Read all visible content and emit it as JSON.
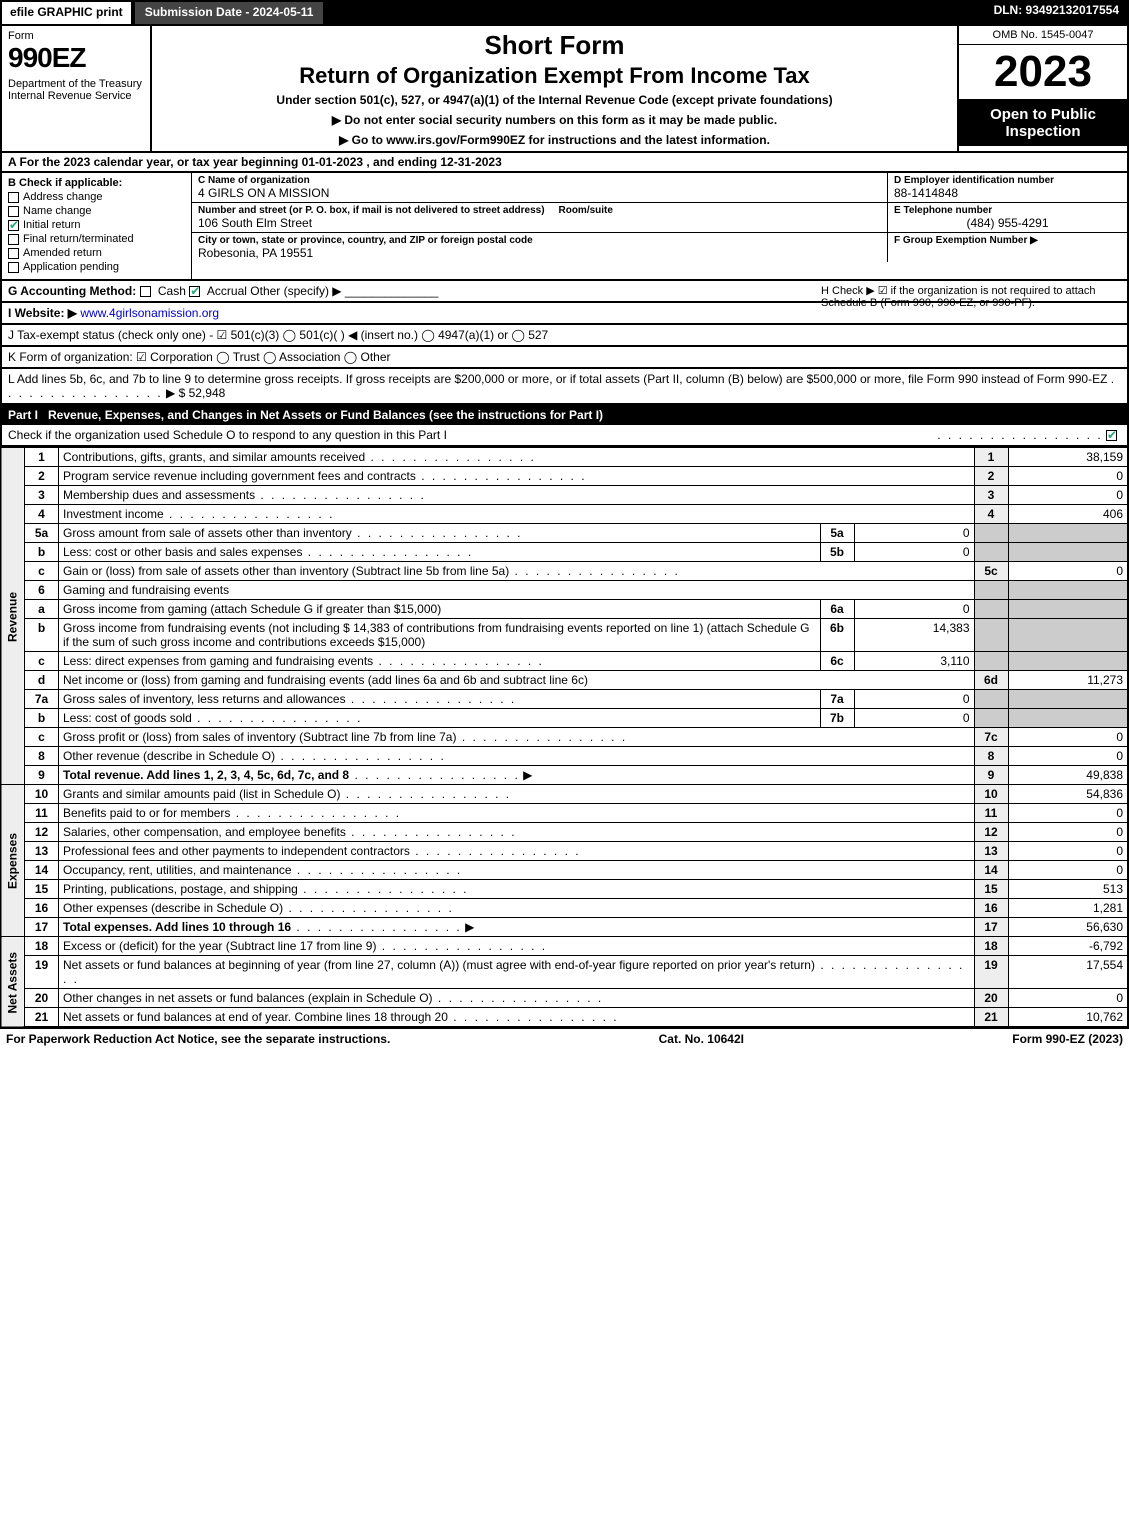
{
  "topbar": {
    "efile": "efile GRAPHIC print",
    "subdate_label": "Submission Date - 2024-05-11",
    "dln": "DLN: 93492132017554"
  },
  "header": {
    "form_word": "Form",
    "form_number": "990EZ",
    "dept": "Department of the Treasury\nInternal Revenue Service",
    "short_form": "Short Form",
    "title": "Return of Organization Exempt From Income Tax",
    "under": "Under section 501(c), 527, or 4947(a)(1) of the Internal Revenue Code (except private foundations)",
    "ssn_note": "▶ Do not enter social security numbers on this form as it may be made public.",
    "goto": "▶ Go to www.irs.gov/Form990EZ for instructions and the latest information.",
    "omb": "OMB No. 1545-0047",
    "year": "2023",
    "open": "Open to Public Inspection"
  },
  "A": "A  For the 2023 calendar year, or tax year beginning 01-01-2023 , and ending 12-31-2023",
  "B": {
    "label": "B  Check if applicable:",
    "items": [
      {
        "label": "Address change",
        "checked": false
      },
      {
        "label": "Name change",
        "checked": false
      },
      {
        "label": "Initial return",
        "checked": true
      },
      {
        "label": "Final return/terminated",
        "checked": false
      },
      {
        "label": "Amended return",
        "checked": false
      },
      {
        "label": "Application pending",
        "checked": false
      }
    ]
  },
  "C": {
    "name_label": "C Name of organization",
    "name": "4 GIRLS ON A MISSION",
    "street_label": "Number and street (or P. O. box, if mail is not delivered to street address)",
    "room_label": "Room/suite",
    "street": "106 South Elm Street",
    "city_label": "City or town, state or province, country, and ZIP or foreign postal code",
    "city": "Robesonia, PA  19551"
  },
  "D": {
    "label": "D Employer identification number",
    "value": "88-1414848"
  },
  "E": {
    "label": "E Telephone number",
    "value": "(484) 955-4291"
  },
  "F": {
    "label": "F Group Exemption Number  ▶",
    "value": ""
  },
  "G": {
    "label": "G Accounting Method:",
    "cash": "Cash",
    "accrual": "Accrual",
    "other": "Other (specify) ▶",
    "accrual_checked": true
  },
  "H": "H  Check ▶ ☑ if the organization is not required to attach Schedule B (Form 990, 990-EZ, or 990-PF).",
  "I": {
    "label": "I Website: ▶",
    "value": "www.4girlsonamission.org"
  },
  "J": "J Tax-exempt status (check only one) - ☑ 501(c)(3)  ◯ 501(c)(  ) ◀ (insert no.)  ◯ 4947(a)(1) or  ◯ 527",
  "K": "K Form of organization:  ☑ Corporation  ◯ Trust  ◯ Association  ◯ Other",
  "L": {
    "text": "L Add lines 5b, 6c, and 7b to line 9 to determine gross receipts. If gross receipts are $200,000 or more, or if total assets (Part II, column (B) below) are $500,000 or more, file Form 990 instead of Form 990-EZ",
    "amount": "▶ $ 52,948"
  },
  "part1": {
    "tag": "Part I",
    "title": "Revenue, Expenses, and Changes in Net Assets or Fund Balances (see the instructions for Part I)",
    "check_o": "Check if the organization used Schedule O to respond to any question in this Part I",
    "check_o_checked": true
  },
  "vlabels": {
    "revenue": "Revenue",
    "expenses": "Expenses",
    "netassets": "Net Assets"
  },
  "lines": {
    "1": {
      "desc": "Contributions, gifts, grants, and similar amounts received",
      "amt": "38,159"
    },
    "2": {
      "desc": "Program service revenue including government fees and contracts",
      "amt": "0"
    },
    "3": {
      "desc": "Membership dues and assessments",
      "amt": "0"
    },
    "4": {
      "desc": "Investment income",
      "amt": "406"
    },
    "5a": {
      "desc": "Gross amount from sale of assets other than inventory",
      "sub": "5a",
      "subamt": "0"
    },
    "5b": {
      "desc": "Less: cost or other basis and sales expenses",
      "sub": "5b",
      "subamt": "0"
    },
    "5c": {
      "desc": "Gain or (loss) from sale of assets other than inventory (Subtract line 5b from line 5a)",
      "amt": "0"
    },
    "6": {
      "desc": "Gaming and fundraising events"
    },
    "6a": {
      "desc": "Gross income from gaming (attach Schedule G if greater than $15,000)",
      "sub": "6a",
      "subamt": "0"
    },
    "6b": {
      "desc": "Gross income from fundraising events (not including $  14,383  of contributions from fundraising events reported on line 1) (attach Schedule G if the sum of such gross income and contributions exceeds $15,000)",
      "sub": "6b",
      "subamt": "14,383"
    },
    "6c": {
      "desc": "Less: direct expenses from gaming and fundraising events",
      "sub": "6c",
      "subamt": "3,110"
    },
    "6d": {
      "desc": "Net income or (loss) from gaming and fundraising events (add lines 6a and 6b and subtract line 6c)",
      "amt": "11,273"
    },
    "7a": {
      "desc": "Gross sales of inventory, less returns and allowances",
      "sub": "7a",
      "subamt": "0"
    },
    "7b": {
      "desc": "Less: cost of goods sold",
      "sub": "7b",
      "subamt": "0"
    },
    "7c": {
      "desc": "Gross profit or (loss) from sales of inventory (Subtract line 7b from line 7a)",
      "amt": "0"
    },
    "8": {
      "desc": "Other revenue (describe in Schedule O)",
      "amt": "0"
    },
    "9": {
      "desc": "Total revenue. Add lines 1, 2, 3, 4, 5c, 6d, 7c, and 8",
      "amt": "49,838",
      "bold": true
    },
    "10": {
      "desc": "Grants and similar amounts paid (list in Schedule O)",
      "amt": "54,836"
    },
    "11": {
      "desc": "Benefits paid to or for members",
      "amt": "0"
    },
    "12": {
      "desc": "Salaries, other compensation, and employee benefits",
      "amt": "0"
    },
    "13": {
      "desc": "Professional fees and other payments to independent contractors",
      "amt": "0"
    },
    "14": {
      "desc": "Occupancy, rent, utilities, and maintenance",
      "amt": "0"
    },
    "15": {
      "desc": "Printing, publications, postage, and shipping",
      "amt": "513"
    },
    "16": {
      "desc": "Other expenses (describe in Schedule O)",
      "amt": "1,281"
    },
    "17": {
      "desc": "Total expenses. Add lines 10 through 16",
      "amt": "56,630",
      "bold": true
    },
    "18": {
      "desc": "Excess or (deficit) for the year (Subtract line 17 from line 9)",
      "amt": "-6,792"
    },
    "19": {
      "desc": "Net assets or fund balances at beginning of year (from line 27, column (A)) (must agree with end-of-year figure reported on prior year's return)",
      "amt": "17,554"
    },
    "20": {
      "desc": "Other changes in net assets or fund balances (explain in Schedule O)",
      "amt": "0"
    },
    "21": {
      "desc": "Net assets or fund balances at end of year. Combine lines 18 through 20",
      "amt": "10,762"
    }
  },
  "footer": {
    "left": "For Paperwork Reduction Act Notice, see the separate instructions.",
    "mid": "Cat. No. 10642I",
    "right": "Form 990-EZ (2023)"
  }
}
